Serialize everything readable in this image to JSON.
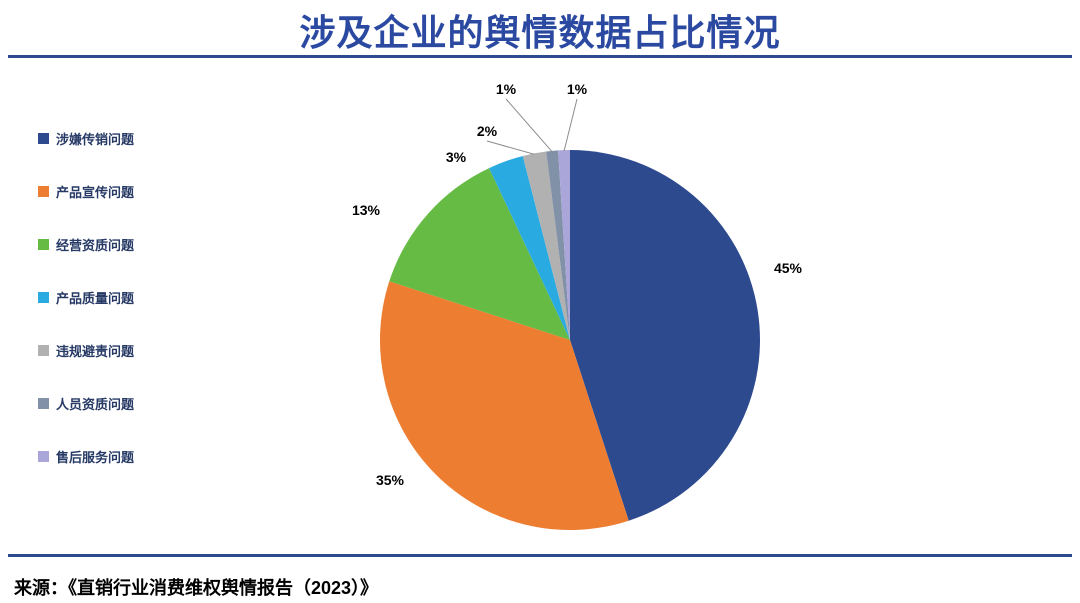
{
  "page": {
    "title": "涉及企业的舆情数据占比情况",
    "source": "来源：《直销行业消费维权舆情报告（2023）》",
    "accent_color": "#2E4A8E",
    "title_color": "#2B49A0"
  },
  "chart_data": {
    "type": "pie",
    "title": "涉及企业的舆情数据占比情况",
    "legend_position": "left",
    "start_angle_deg": 0,
    "direction": "clockwise",
    "categories": [
      "涉嫌传销问题",
      "产品宣传问题",
      "经营资质问题",
      "产品质量问题",
      "违规避责问题",
      "人员资质问题",
      "售后服务问题"
    ],
    "values": [
      45,
      35,
      13,
      3,
      2,
      1,
      1
    ],
    "slices": [
      {
        "label": "涉嫌传销问题",
        "value": 45,
        "pct_label": "45%",
        "color": "#2E4A8F"
      },
      {
        "label": "产品宣传问题",
        "value": 35,
        "pct_label": "35%",
        "color": "#ED7D31"
      },
      {
        "label": "经营资质问题",
        "value": 13,
        "pct_label": "13%",
        "color": "#66BB44"
      },
      {
        "label": "产品质量问题",
        "value": 3,
        "pct_label": "3%",
        "color": "#29ABE2"
      },
      {
        "label": "违规避责问题",
        "value": 2,
        "pct_label": "2%",
        "color": "#B1B1B1"
      },
      {
        "label": "人员资质问题",
        "value": 1,
        "pct_label": "1%",
        "color": "#8191A8"
      },
      {
        "label": "售后服务问题",
        "value": 1,
        "pct_label": "1%",
        "color": "#ABA6DA"
      }
    ]
  }
}
